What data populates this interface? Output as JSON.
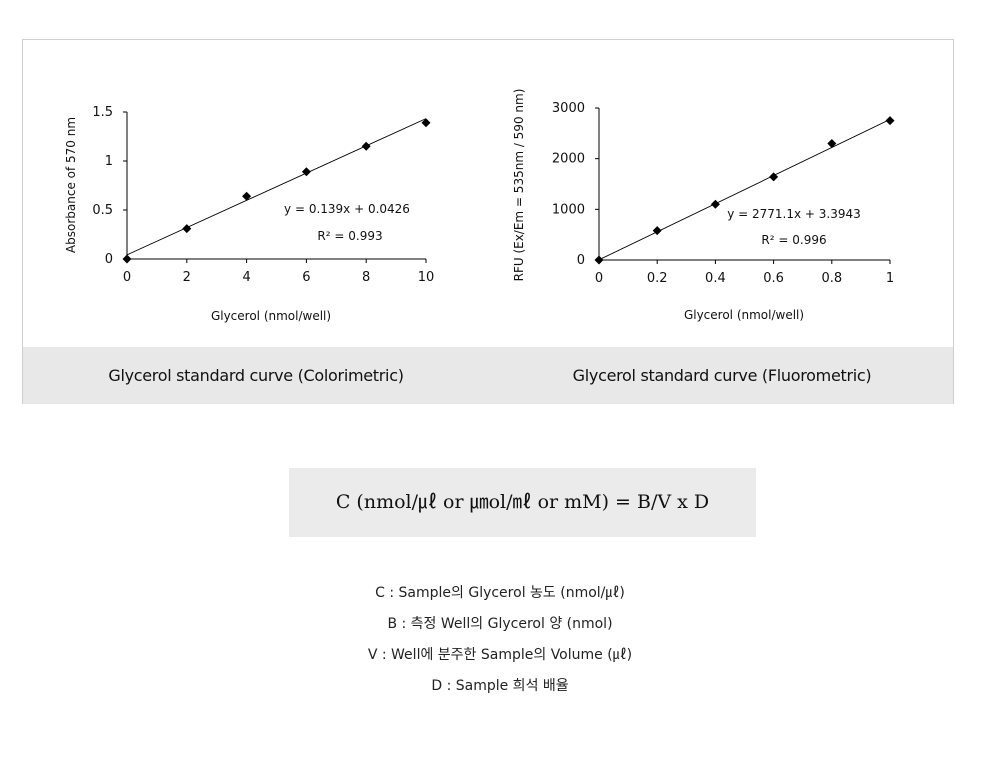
{
  "captions": {
    "left": "Glycerol standard curve (Colorimetric)",
    "right": "Glycerol standard curve (Fluorometric)"
  },
  "chart_data": [
    {
      "type": "scatter",
      "xlabel": "Glycerol (nmol/well)",
      "ylabel": "Absorbance of 570 nm",
      "x": [
        0,
        2,
        4,
        6,
        8,
        10
      ],
      "y": [
        0.0,
        0.31,
        0.64,
        0.89,
        1.15,
        1.39
      ],
      "xlim": [
        0,
        10
      ],
      "ylim": [
        0,
        1.5
      ],
      "xticks": [
        "0",
        "2",
        "4",
        "6",
        "8",
        "10"
      ],
      "yticks": [
        "0",
        "0.5",
        "1",
        "1.5"
      ],
      "trendline": {
        "slope": 0.139,
        "intercept": 0.0426
      },
      "equation": "y = 0.139x + 0.0426",
      "r2": "R² = 0.993",
      "grid": false,
      "marker": "diamond",
      "color": "#000000"
    },
    {
      "type": "scatter",
      "xlabel": "Glycerol (nmol/well)",
      "ylabel": "RFU (Ex/Em = 535nm / 590 nm)",
      "x": [
        0,
        0.2,
        0.4,
        0.6,
        0.8,
        1.0
      ],
      "y": [
        0,
        580,
        1100,
        1640,
        2300,
        2750
      ],
      "xlim": [
        0,
        1
      ],
      "ylim": [
        0,
        3000
      ],
      "xticks": [
        "0",
        "0.2",
        "0.4",
        "0.6",
        "0.8",
        "1"
      ],
      "yticks": [
        "0",
        "1000",
        "2000",
        "3000"
      ],
      "trendline": {
        "slope": 2771.1,
        "intercept": 3.3943
      },
      "equation": "y = 2771.1x + 3.3943",
      "r2": "R² = 0.996",
      "grid": false,
      "marker": "diamond",
      "color": "#000000"
    }
  ],
  "formula": "C (nmol/㎕ or ㎛ol/㎖ or mM) = B/V x D",
  "definitions": [
    "C : Sample의 Glycerol 농도 (nmol/㎕)",
    "B : 측정 Well의 Glycerol 양 (nmol)",
    "V : Well에 분주한 Sample의 Volume (㎕)",
    "D : Sample 희석 배율"
  ]
}
